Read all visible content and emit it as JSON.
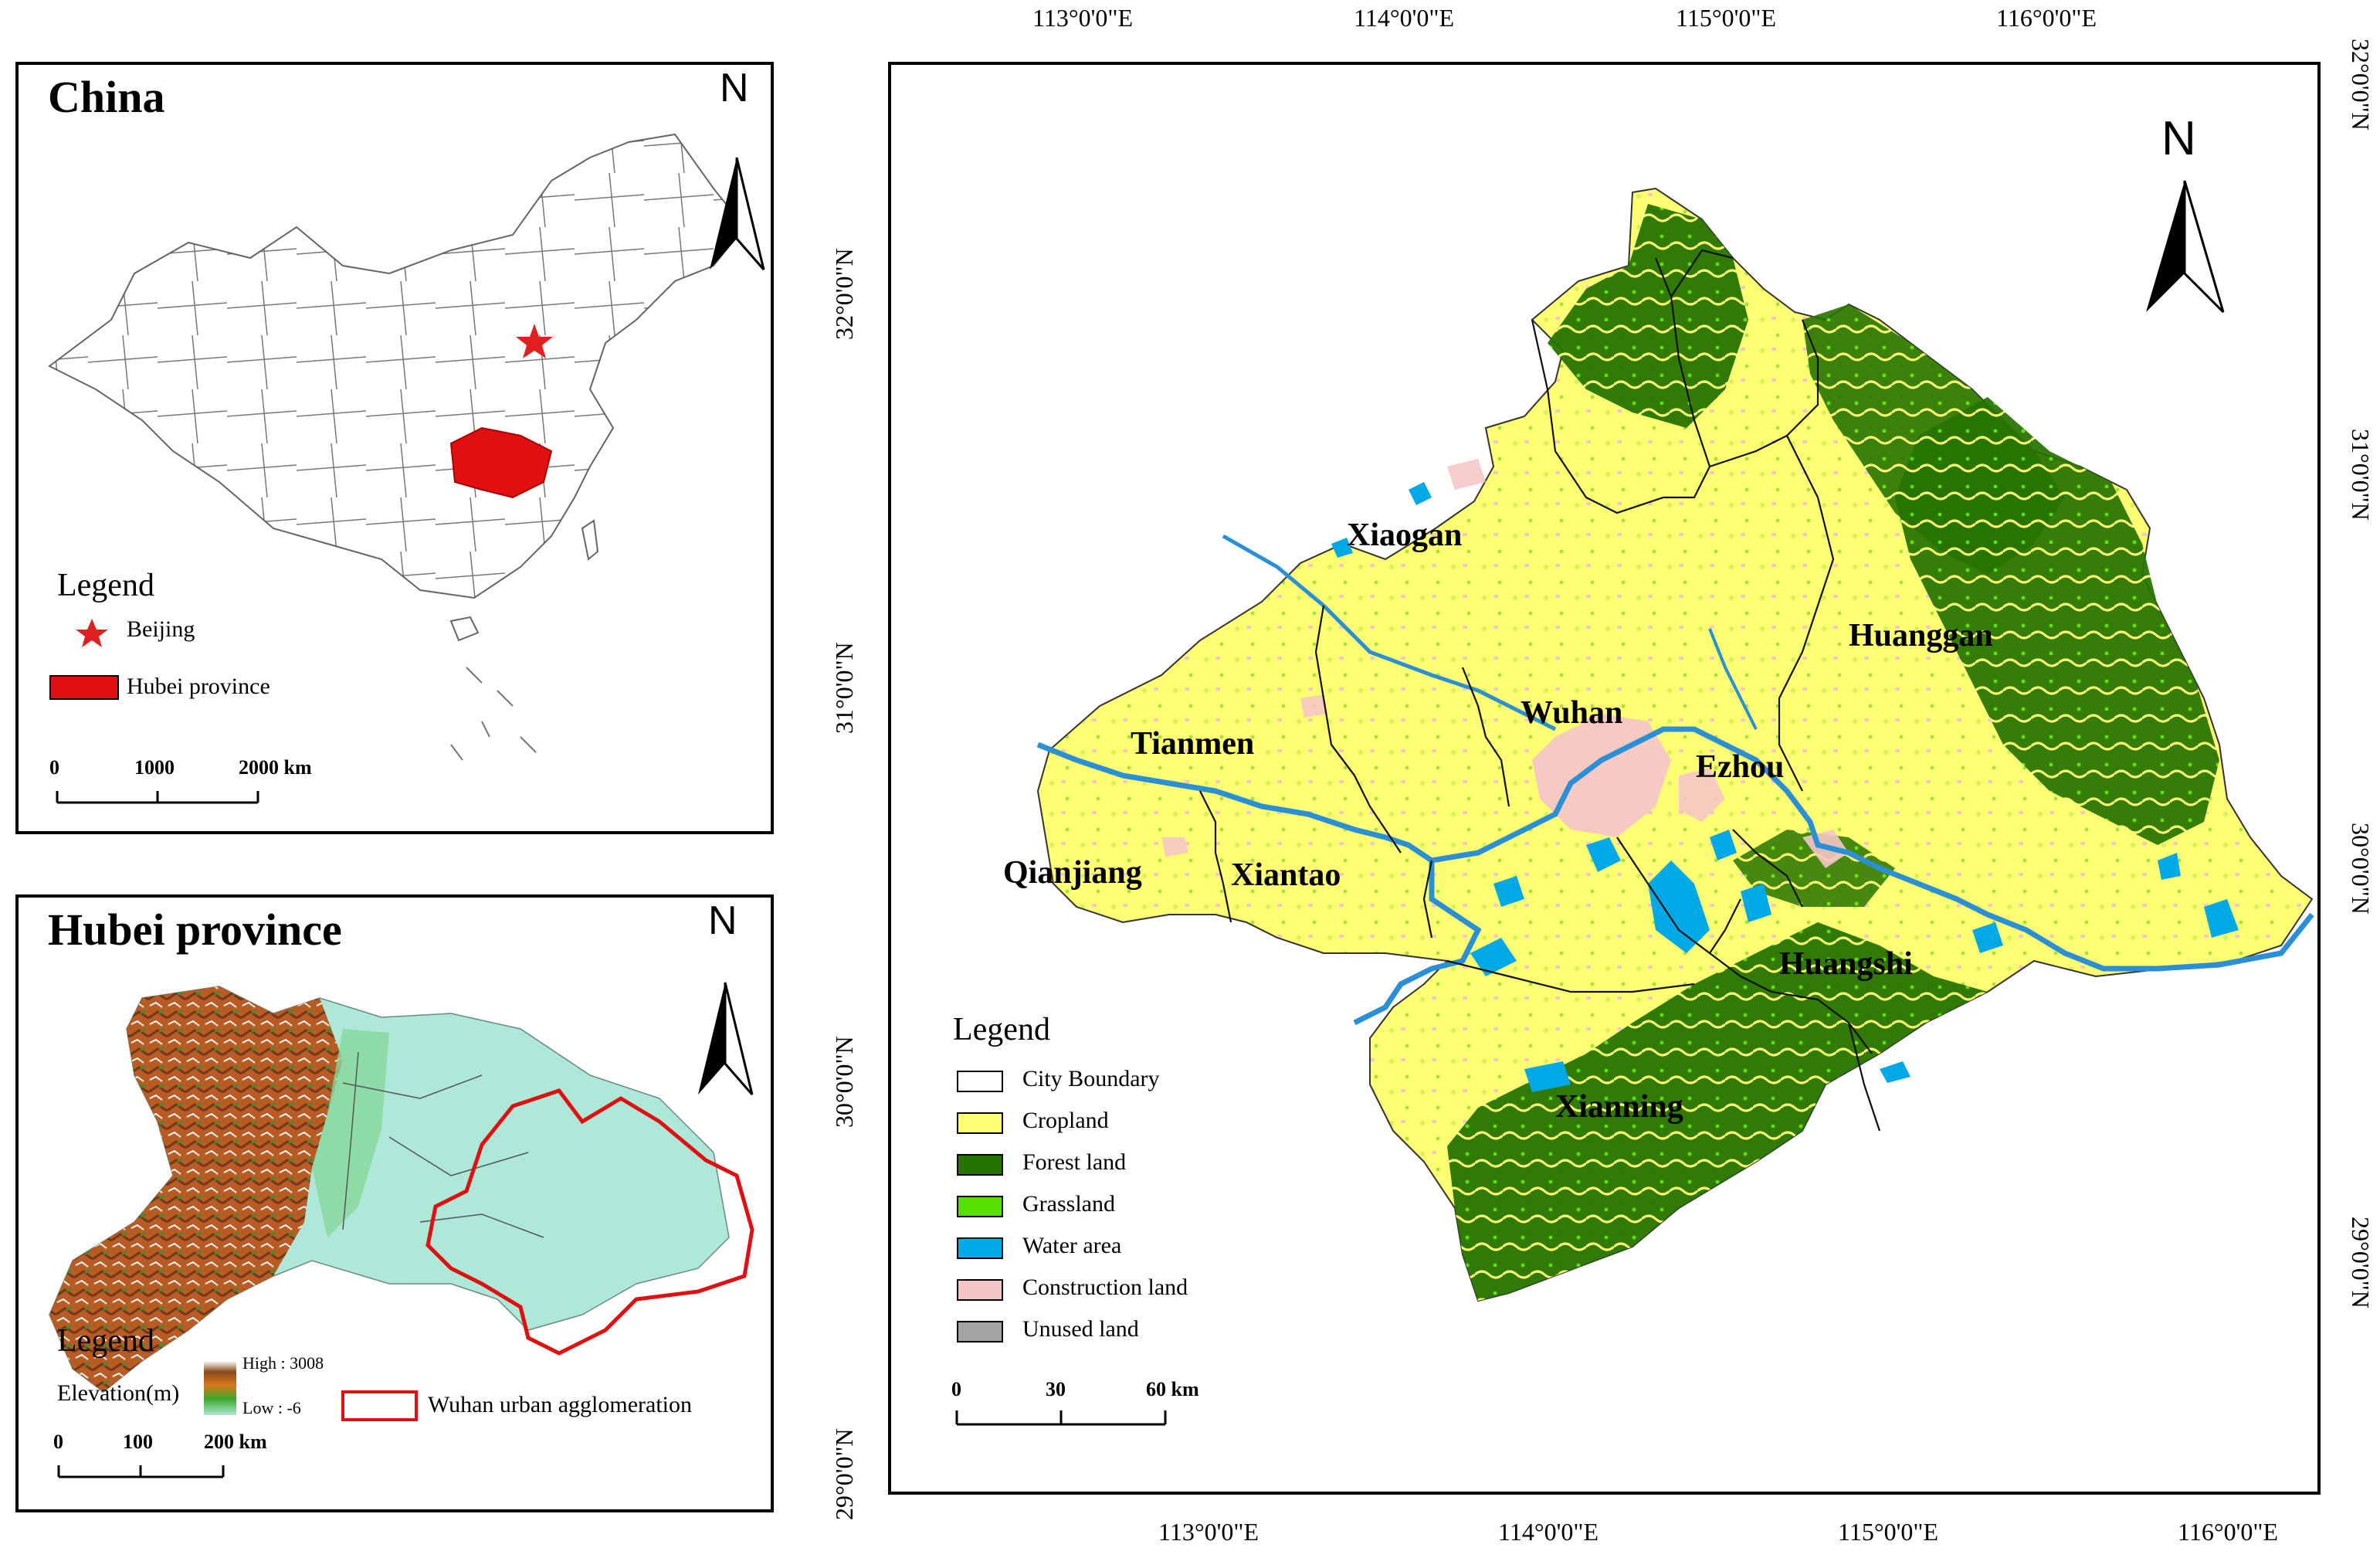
{
  "china_panel": {
    "title": "China",
    "north": "N",
    "legend": {
      "title": "Legend",
      "items": [
        {
          "label": "Beijing",
          "symbol": "star",
          "color": "#e02020"
        },
        {
          "label": "Hubei province",
          "symbol": "rect",
          "color": "#e01010"
        }
      ]
    },
    "scalebar": {
      "labels": [
        "0",
        "1000",
        "2000 km"
      ]
    }
  },
  "hubei_panel": {
    "title": "Hubei province",
    "north": "N",
    "legend": {
      "title": "Legend",
      "elevation_label": "Elevation(m)",
      "elevation_high": "High : 3008",
      "elevation_low": "Low : -6",
      "agglomeration_label": "Wuhan urban agglomeration",
      "agglomeration_color": "#e01010"
    },
    "scalebar": {
      "labels": [
        "0",
        "100",
        "200 km"
      ]
    }
  },
  "main_map": {
    "north": "N",
    "top_labels": [
      "113°0'0\"E",
      "114°0'0\"E",
      "115°0'0\"E",
      "116°0'0\"E"
    ],
    "bottom_labels": [
      "113°0'0\"E",
      "114°0'0\"E",
      "115°0'0\"E",
      "116°0'0\"E"
    ],
    "left_labels": [
      "32°0'0\"N",
      "31°0'0\"N",
      "30°0'0\"N",
      "29°0'0\"N"
    ],
    "right_labels": [
      "32°0'0\"N",
      "31°0'0\"N",
      "30°0'0\"N",
      "29°0'0\"N"
    ],
    "cities": [
      "Xiaogan",
      "Huanggan",
      "Wuhan",
      "Tianmen",
      "Ezhou",
      "Qianjiang",
      "Xiantao",
      "Huangshi",
      "Xianning"
    ],
    "legend": {
      "title": "Legend",
      "items": [
        {
          "label": "City Boundary",
          "color": "#ffffff"
        },
        {
          "label": "Cropland",
          "color": "#ffff73"
        },
        {
          "label": "Forest land",
          "color": "#267300"
        },
        {
          "label": "Grassland",
          "color": "#55e000"
        },
        {
          "label": "Water area",
          "color": "#00a9e6"
        },
        {
          "label": "Construction land",
          "color": "#f5c6c6"
        },
        {
          "label": "Unused land",
          "color": "#a3a3a3"
        }
      ]
    },
    "scalebar": {
      "labels": [
        "0",
        "30",
        "60 km"
      ]
    }
  }
}
